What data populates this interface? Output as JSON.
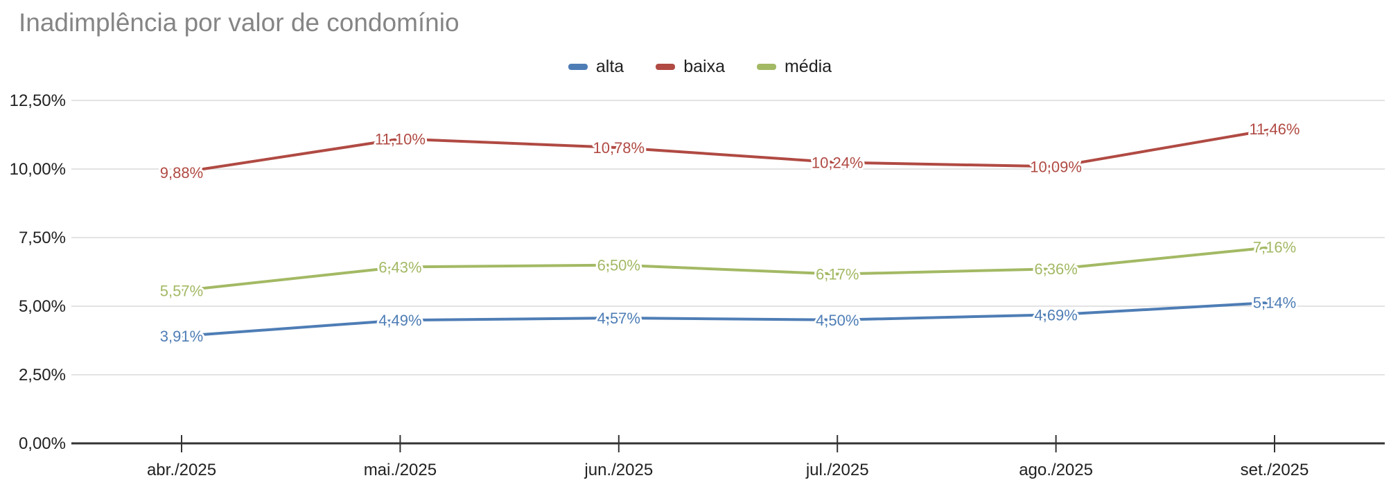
{
  "chart_data": {
    "type": "line",
    "title": "Inadimplência por valor de condomínio",
    "categories": [
      "abr./2025",
      "mai./2025",
      "jun./2025",
      "jul./2025",
      "ago./2025",
      "set./2025"
    ],
    "series": [
      {
        "name": "alta",
        "color": "#4e7db5",
        "values": [
          3.91,
          4.49,
          4.57,
          4.5,
          4.69,
          5.14
        ],
        "labels": [
          "3,91%",
          "4,49%",
          "4,57%",
          "4,50%",
          "4,69%",
          "5,14%"
        ]
      },
      {
        "name": "baixa",
        "color": "#b04a43",
        "values": [
          9.88,
          11.1,
          10.78,
          10.24,
          10.09,
          11.46
        ],
        "labels": [
          "9,88%",
          "11,10%",
          "10,78%",
          "10,24%",
          "10,09%",
          "11,46%"
        ]
      },
      {
        "name": "média",
        "color": "#a3b964",
        "values": [
          5.57,
          6.43,
          6.5,
          6.17,
          6.36,
          7.16
        ],
        "labels": [
          "5,57%",
          "6,43%",
          "6,50%",
          "6,17%",
          "6,36%",
          "7,16%"
        ]
      }
    ],
    "y_axis": {
      "min": 0,
      "max": 12.5,
      "tick_values": [
        0,
        2.5,
        5,
        7.5,
        10,
        12.5
      ],
      "tick_labels": [
        "0,00%",
        "2,50%",
        "5,00%",
        "7,50%",
        "10,00%",
        "12,50%"
      ]
    },
    "legend_position": "top",
    "grid": true,
    "colors": {
      "grid_line": "#e3e3e3",
      "axis_line": "#333333",
      "axis_text": "#212121",
      "title_text": "#858585",
      "background": "#ffffff"
    }
  }
}
